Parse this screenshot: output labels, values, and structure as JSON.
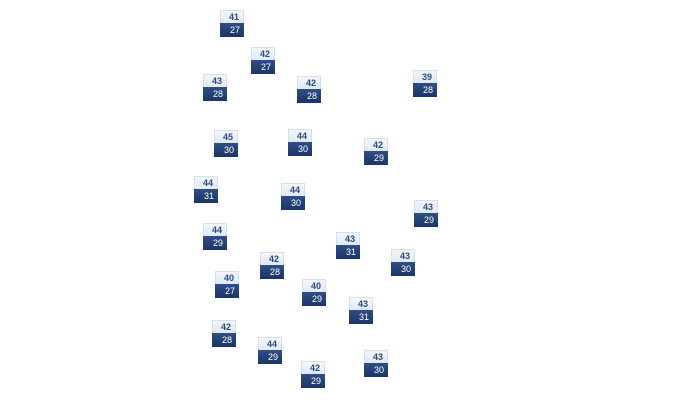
{
  "markers": [
    {
      "high": "41",
      "low": "27"
    },
    {
      "high": "42",
      "low": "27"
    },
    {
      "high": "43",
      "low": "28"
    },
    {
      "high": "42",
      "low": "28"
    },
    {
      "high": "39",
      "low": "28"
    },
    {
      "high": "45",
      "low": "30"
    },
    {
      "high": "44",
      "low": "30"
    },
    {
      "high": "42",
      "low": "29"
    },
    {
      "high": "44",
      "low": "31"
    },
    {
      "high": "44",
      "low": "30"
    },
    {
      "high": "43",
      "low": "29"
    },
    {
      "high": "44",
      "low": "29"
    },
    {
      "high": "43",
      "low": "31"
    },
    {
      "high": "43",
      "low": "30"
    },
    {
      "high": "42",
      "low": "28"
    },
    {
      "high": "40",
      "low": "27"
    },
    {
      "high": "40",
      "low": "29"
    },
    {
      "high": "43",
      "low": "31"
    },
    {
      "high": "42",
      "low": "28"
    },
    {
      "high": "44",
      "low": "29"
    },
    {
      "high": "42",
      "low": "29"
    },
    {
      "high": "43",
      "low": "30"
    }
  ],
  "colors": {
    "high_bg": "#e6edf7",
    "high_text": "#2c4a7e",
    "low_bg": "#1f3a6e",
    "low_text": "#ffffff"
  }
}
